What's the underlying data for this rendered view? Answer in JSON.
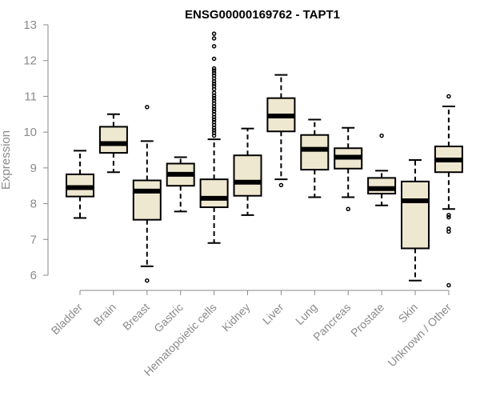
{
  "chart_data": {
    "type": "box",
    "title": "ENSG00000169762 - TAPT1",
    "ylabel": "Expression",
    "xlabel": "",
    "ylim": [
      5.6,
      13.1
    ],
    "yticks": [
      6,
      7,
      8,
      9,
      10,
      11,
      12,
      13
    ],
    "ytick_labels": [
      "6",
      "7",
      "8",
      "9",
      "10",
      "11",
      "12",
      "13"
    ],
    "colors": {
      "box_fill": "#efe8d0",
      "box_stroke": "#000000",
      "median": "#000000"
    },
    "categories": [
      "Bladder",
      "Brain",
      "Breast",
      "Gastric",
      "Hematopoietic cells",
      "Kidney",
      "Liver",
      "Lung",
      "Pancreas",
      "Prostate",
      "Skin",
      "Unknown / Other"
    ],
    "boxes": [
      {
        "name": "Bladder",
        "whisker_low": 7.6,
        "q1": 8.2,
        "median": 8.45,
        "q3": 8.82,
        "whisker_high": 9.48,
        "outliers": []
      },
      {
        "name": "Brain",
        "whisker_low": 8.88,
        "q1": 9.42,
        "median": 9.68,
        "q3": 10.15,
        "whisker_high": 10.5,
        "outliers": []
      },
      {
        "name": "Breast",
        "whisker_low": 6.25,
        "q1": 7.55,
        "median": 8.35,
        "q3": 8.65,
        "whisker_high": 9.75,
        "outliers": [
          10.7,
          5.85
        ]
      },
      {
        "name": "Gastric",
        "whisker_low": 7.78,
        "q1": 8.5,
        "median": 8.82,
        "q3": 9.12,
        "whisker_high": 9.3,
        "outliers": []
      },
      {
        "name": "Hematopoietic cells",
        "whisker_low": 6.9,
        "q1": 7.9,
        "median": 8.15,
        "q3": 8.68,
        "whisker_high": 9.8,
        "outliers": [
          12.75,
          12.62,
          12.4,
          12.05,
          11.78,
          11.72,
          11.65,
          11.58,
          11.5,
          11.42,
          11.35,
          11.28,
          11.2,
          11.1,
          11.02,
          10.95,
          10.88,
          10.8,
          10.72,
          10.65,
          10.58,
          10.5,
          10.42,
          10.35,
          10.28,
          10.2,
          10.12,
          10.05,
          9.98,
          9.9
        ]
      },
      {
        "name": "Kidney",
        "whisker_low": 7.68,
        "q1": 8.22,
        "median": 8.6,
        "q3": 9.35,
        "whisker_high": 10.1,
        "outliers": []
      },
      {
        "name": "Liver",
        "whisker_low": 8.68,
        "q1": 10.02,
        "median": 10.45,
        "q3": 10.95,
        "whisker_high": 11.6,
        "outliers": [
          8.52
        ]
      },
      {
        "name": "Lung",
        "whisker_low": 8.18,
        "q1": 8.95,
        "median": 9.52,
        "q3": 9.92,
        "whisker_high": 10.35,
        "outliers": []
      },
      {
        "name": "Pancreas",
        "whisker_low": 8.18,
        "q1": 8.98,
        "median": 9.3,
        "q3": 9.55,
        "whisker_high": 10.12,
        "outliers": [
          7.85
        ]
      },
      {
        "name": "Prostate",
        "whisker_low": 7.95,
        "q1": 8.28,
        "median": 8.42,
        "q3": 8.72,
        "whisker_high": 8.92,
        "outliers": [
          9.9
        ]
      },
      {
        "name": "Skin",
        "whisker_low": 5.85,
        "q1": 6.75,
        "median": 8.08,
        "q3": 8.62,
        "whisker_high": 9.22,
        "outliers": []
      },
      {
        "name": "Unknown / Other",
        "whisker_low": 7.85,
        "q1": 8.88,
        "median": 9.22,
        "q3": 9.6,
        "whisker_high": 10.72,
        "outliers": [
          11.0,
          7.68,
          7.62,
          7.3,
          7.22,
          5.72
        ]
      }
    ]
  }
}
